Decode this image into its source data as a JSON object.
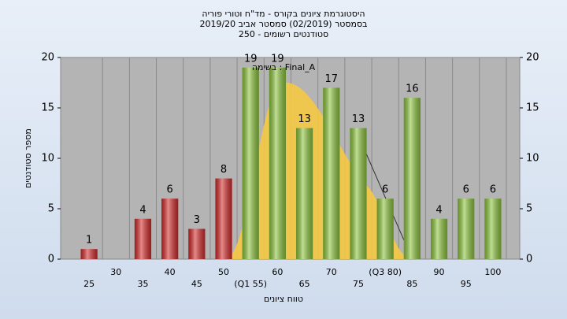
{
  "chart_data": {
    "type": "bar",
    "title": [
      "היסטוגרמת ציונים בקורס - מד\"ח וטורי פוריה",
      "בסמסטר  (02/2019)  סמסטר אביב 2019/20",
      "סטודנטים רשומים - 250"
    ],
    "annotation": "בשימה : Final_A",
    "x_label": "טווח ציונים",
    "y_label": "מספר סטודנטים",
    "categories": [
      "25",
      "30",
      "35",
      "40",
      "45",
      "50",
      "(Q1 55)",
      "60",
      "65",
      "70",
      "75",
      "(Q3 80)",
      "85",
      "90",
      "95",
      "100"
    ],
    "values": [
      1,
      null,
      4,
      6,
      3,
      8,
      19,
      19,
      13,
      17,
      13,
      6,
      16,
      4,
      6,
      6
    ],
    "colors": [
      "#d42a2a",
      "#d42a2a",
      "#d42a2a",
      "#d42a2a",
      "#d42a2a",
      "#d42a2a",
      "#8cc43c",
      "#8cc43c",
      "#8cc43c",
      "#8cc43c",
      "#8cc43c",
      "#8cc43c",
      "#8cc43c",
      "#8cc43c",
      "#8cc43c",
      "#8cc43c"
    ],
    "ylim": [
      0,
      20
    ],
    "yticks": [
      0,
      5,
      10,
      15,
      20
    ],
    "y2lim": [
      0,
      20
    ],
    "y2ticks": [
      0,
      5,
      10,
      15,
      20
    ],
    "grid": true
  }
}
